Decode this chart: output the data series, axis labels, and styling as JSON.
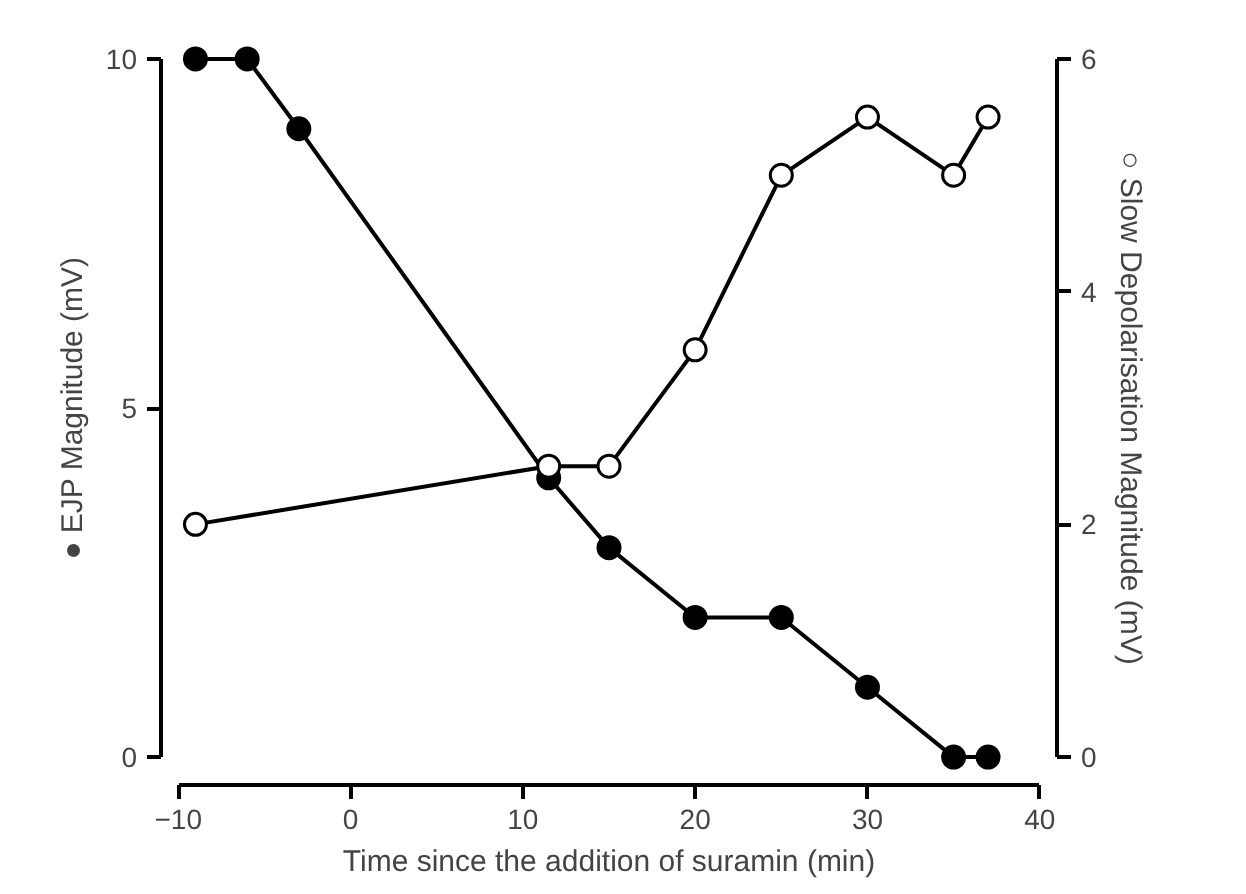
{
  "chart_data": {
    "type": "line",
    "xlabel": "Time since the addition of suramin (min)",
    "ylabel": "● EJP Magnitude (mV)",
    "y2label": "○ Slow Depolarisation Magnitude (mV)",
    "xlim": [
      -10,
      40
    ],
    "xticks": [
      -10,
      0,
      10,
      20,
      30,
      40
    ],
    "ylim": [
      0,
      10
    ],
    "yticks": [
      0,
      5,
      10
    ],
    "y2lim": [
      0,
      6
    ],
    "y2ticks": [
      0,
      2,
      4,
      6
    ],
    "grid": false,
    "line_style": "solid",
    "series": [
      {
        "color": "#000000",
        "marker": "circle",
        "x": [
          -9,
          -6,
          -3,
          11.5,
          15,
          20,
          25,
          30,
          35,
          37
        ],
        "values": [
          10,
          10,
          9,
          4,
          3,
          2,
          2,
          1,
          0,
          0
        ]
      },
      {
        "color": "#000000",
        "marker": "circle",
        "axis": "y2",
        "x": [
          -9,
          11.5,
          15,
          20,
          25,
          30,
          35,
          37
        ],
        "values": [
          2,
          2.5,
          2.5,
          3.5,
          5,
          5.5,
          5,
          5.5
        ]
      }
    ]
  }
}
